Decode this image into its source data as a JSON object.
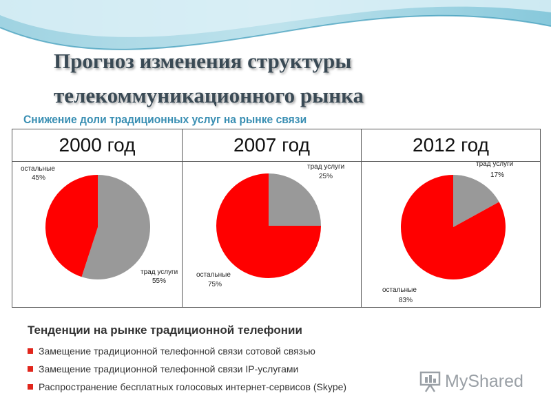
{
  "slide": {
    "title_line1": "Прогноз изменения структуры",
    "title_line2": "телекоммуникационного рынка",
    "subtitle": "Снижение доли традиционных услуг на рынке связи"
  },
  "chart_data": [
    {
      "type": "pie",
      "title": "2000 год",
      "slices": [
        {
          "label": "трад услуги",
          "value": 55,
          "value_label": "55%",
          "color": "#999999"
        },
        {
          "label": "остальные",
          "value": 45,
          "value_label": "45%",
          "color": "#ff0000"
        }
      ]
    },
    {
      "type": "pie",
      "title": "2007 год",
      "slices": [
        {
          "label": "трад услуги",
          "value": 25,
          "value_label": "25%",
          "color": "#999999"
        },
        {
          "label": "остальные",
          "value": 75,
          "value_label": "75%",
          "color": "#ff0000"
        }
      ]
    },
    {
      "type": "pie",
      "title": "2012 год",
      "slices": [
        {
          "label": "трад услуги",
          "value": 17,
          "value_label": "17%",
          "color": "#999999"
        },
        {
          "label": "остальные",
          "value": 83,
          "value_label": "83%",
          "color": "#ff0000"
        }
      ]
    }
  ],
  "trends": {
    "title": "Тенденции на рынке традиционной телефонии",
    "items": [
      "Замещение традиционной телефонной связи сотовой связью",
      "Замещение традиционной телефонной связи IP-услугами",
      "Распространение бесплатных голосовых интернет-сервисов (Skype)"
    ],
    "bullet_color": "#e1261c"
  },
  "watermark": {
    "text": "MyShared",
    "icon": "presentation-board-icon"
  }
}
